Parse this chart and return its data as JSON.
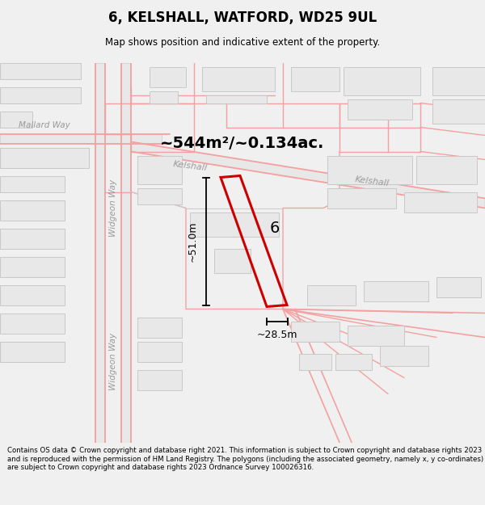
{
  "title": "6, KELSHALL, WATFORD, WD25 9UL",
  "subtitle": "Map shows position and indicative extent of the property.",
  "area_text": "~544m²/~0.134ac.",
  "dim_width": "~28.5m",
  "dim_height": "~51.0m",
  "plot_number": "6",
  "footer": "Contains OS data © Crown copyright and database right 2021. This information is subject to Crown copyright and database rights 2023 and is reproduced with the permission of HM Land Registry. The polygons (including the associated geometry, namely x, y co-ordinates) are subject to Crown copyright and database rights 2023 Ordnance Survey 100026316.",
  "bg_color": "#f0f0f0",
  "map_bg": "#ffffff",
  "building_fill": "#e8e8e8",
  "building_edge": "#c8c8c8",
  "road_color": "#f5a0a0",
  "road_outline_color": "#dddddd",
  "highlight_edge": "#cc0000",
  "highlight_lw": 2.2,
  "fig_width": 6.0,
  "fig_height": 6.25,
  "dpi": 100
}
